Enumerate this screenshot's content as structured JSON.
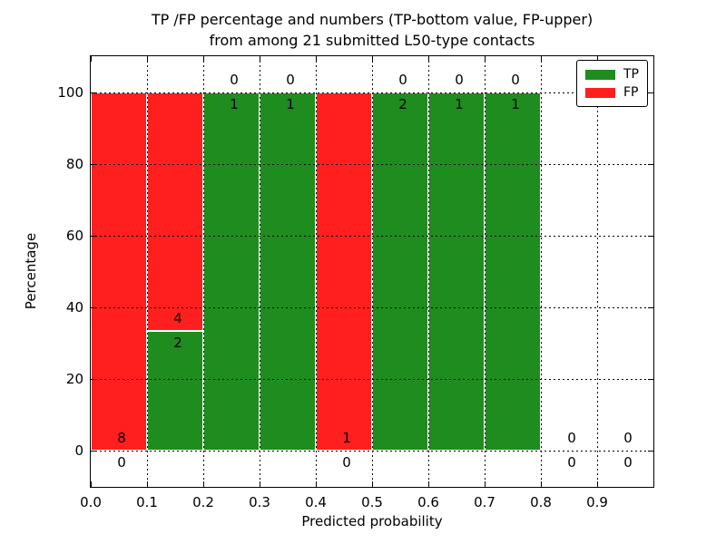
{
  "figure": {
    "title_line1": "TP /FP percentage and numbers (TP-bottom value, FP-upper)",
    "title_line2": "from among 21 submitted L50-type contacts"
  },
  "chart_data": {
    "type": "bar",
    "stacked": true,
    "title": "TP /FP percentage and numbers (TP-bottom value, FP-upper)\nfrom among 21 submitted L50-type contacts",
    "xlabel": "Predicted probability",
    "ylabel": "Percentage",
    "xlim": [
      0.0,
      1.0
    ],
    "ylim": [
      -10,
      110
    ],
    "xticks": [
      0.0,
      0.1,
      0.2,
      0.3,
      0.4,
      0.5,
      0.6,
      0.7,
      0.8,
      0.9
    ],
    "xtick_labels": [
      "0.0",
      "0.1",
      "0.2",
      "0.3",
      "0.4",
      "0.5",
      "0.6",
      "0.7",
      "0.8",
      "0.9"
    ],
    "yticks": [
      0,
      20,
      40,
      60,
      80,
      100
    ],
    "ytick_labels": [
      "0",
      "20",
      "40",
      "60",
      "80",
      "100"
    ],
    "grid": true,
    "grid_style": "dotted",
    "colors": {
      "tp": "#1e8c1e",
      "fp": "#ff1f1f"
    },
    "legend": {
      "position": "upper right",
      "entries": [
        {
          "label": "TP",
          "color": "#1e8c1e"
        },
        {
          "label": "FP",
          "color": "#ff1f1f"
        }
      ]
    },
    "total_contacts": 21,
    "bins": [
      {
        "range": [
          0.0,
          0.1
        ],
        "tp_count": 0,
        "fp_count": 8,
        "tp_pct": 0,
        "fp_pct": 100
      },
      {
        "range": [
          0.1,
          0.2
        ],
        "tp_count": 2,
        "fp_count": 4,
        "tp_pct": 33.33,
        "fp_pct": 66.67
      },
      {
        "range": [
          0.2,
          0.3
        ],
        "tp_count": 1,
        "fp_count": 0,
        "tp_pct": 100,
        "fp_pct": 0
      },
      {
        "range": [
          0.3,
          0.4
        ],
        "tp_count": 1,
        "fp_count": 0,
        "tp_pct": 100,
        "fp_pct": 0
      },
      {
        "range": [
          0.4,
          0.5
        ],
        "tp_count": 0,
        "fp_count": 1,
        "tp_pct": 0,
        "fp_pct": 100
      },
      {
        "range": [
          0.5,
          0.6
        ],
        "tp_count": 2,
        "fp_count": 0,
        "tp_pct": 100,
        "fp_pct": 0
      },
      {
        "range": [
          0.6,
          0.7
        ],
        "tp_count": 1,
        "fp_count": 0,
        "tp_pct": 100,
        "fp_pct": 0
      },
      {
        "range": [
          0.7,
          0.8
        ],
        "tp_count": 1,
        "fp_count": 0,
        "tp_pct": 100,
        "fp_pct": 0
      },
      {
        "range": [
          0.8,
          0.9
        ],
        "tp_count": 0,
        "fp_count": 0,
        "tp_pct": 0,
        "fp_pct": 0
      },
      {
        "range": [
          0.9,
          1.0
        ],
        "tp_count": 0,
        "fp_count": 0,
        "tp_pct": 0,
        "fp_pct": 0
      }
    ]
  }
}
